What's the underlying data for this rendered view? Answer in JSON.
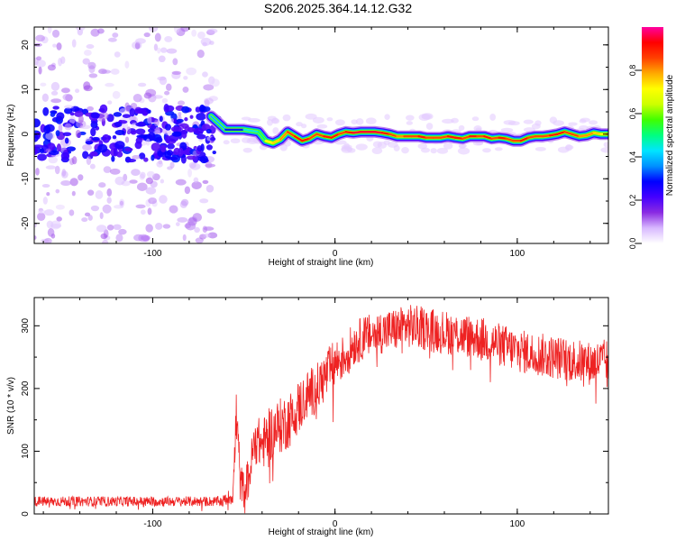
{
  "title": "S206.2025.364.14.12.G32",
  "colors": {
    "snr_line": "#ee2222",
    "background": "#ffffff",
    "axes": "#000000"
  },
  "chart_data": [
    {
      "type": "heatmap",
      "xlabel": "Height of straight line (km)",
      "ylabel": "Frequency (Hz)",
      "xlim": [
        -165,
        150
      ],
      "ylim": [
        -24.5,
        24
      ],
      "x_ticks": [
        -100,
        0,
        100
      ],
      "y_ticks": [
        -20,
        -10,
        0,
        10,
        20
      ],
      "colorbar": {
        "label": "Normalized spectral amplitude",
        "range": [
          0,
          1
        ],
        "ticks": [
          "0.0",
          "0.2",
          "0.4",
          "0.6",
          "0.8"
        ],
        "colormap": [
          "#ffffff",
          "#d8b8ff",
          "#8a2be2",
          "#4400ff",
          "#0000ff",
          "#0090ff",
          "#00e5ff",
          "#00ff80",
          "#40ff00",
          "#ccff00",
          "#ffff00",
          "#ffaa00",
          "#ff4000",
          "#ff0000",
          "#ff00a0"
        ]
      },
      "ridge": {
        "description_free": true,
        "x": [
          -68,
          -60,
          -50,
          -42,
          -38,
          -34,
          -30,
          -26,
          -22,
          -18,
          -14,
          -10,
          -6,
          -2,
          2,
          6,
          10,
          14,
          18,
          22,
          26,
          30,
          34,
          38,
          42,
          46,
          50,
          54,
          58,
          62,
          66,
          70,
          74,
          78,
          82,
          86,
          90,
          94,
          98,
          102,
          106,
          110,
          114,
          118,
          122,
          126,
          130,
          134,
          138,
          142,
          146,
          150
        ],
        "frequency": [
          4,
          1.0,
          1.0,
          0.5,
          -1.5,
          -2.0,
          -1.2,
          0.5,
          -0.5,
          -1.5,
          -1.0,
          0.0,
          -0.5,
          -0.8,
          0.0,
          0.5,
          0.3,
          0.5,
          0.5,
          0.5,
          0.3,
          0.0,
          -0.5,
          -0.5,
          -0.5,
          -0.5,
          -0.8,
          -0.8,
          -0.8,
          -0.5,
          -0.8,
          -1.0,
          -0.5,
          -0.5,
          -0.5,
          -1.0,
          -0.8,
          -1.0,
          -1.5,
          -1.5,
          -0.8,
          -0.5,
          -0.5,
          -0.3,
          0.0,
          0.5,
          0.0,
          -0.5,
          -0.3,
          0.3,
          0.0,
          0.0
        ],
        "amplitude": [
          0.4,
          0.3,
          0.45,
          0.5,
          0.7,
          0.75,
          0.8,
          0.85,
          0.9,
          0.9,
          0.85,
          0.85,
          0.9,
          0.9,
          0.85,
          0.9,
          0.95,
          0.95,
          0.95,
          0.95,
          0.9,
          0.85,
          0.8,
          0.85,
          0.85,
          0.9,
          0.85,
          0.85,
          0.85,
          0.9,
          0.9,
          0.85,
          0.9,
          0.85,
          0.9,
          0.85,
          0.9,
          0.85,
          0.85,
          0.9,
          0.85,
          0.85,
          0.85,
          0.9,
          0.9,
          0.85,
          0.85,
          0.8,
          0.8,
          0.75,
          0.7,
          0.7
        ]
      },
      "noise_region": {
        "x_range": [
          -165,
          -65
        ],
        "frequency_range": [
          -24.5,
          24
        ],
        "core_frequency_range": [
          -6,
          6
        ],
        "amplitude_range": [
          0.05,
          0.45
        ]
      }
    },
    {
      "type": "line",
      "xlabel": "Height of straight line (km)",
      "ylabel": "SNR (10 * v/v)",
      "xlim": [
        -165,
        150
      ],
      "ylim": [
        0,
        345
      ],
      "x_ticks": [
        -100,
        0,
        100
      ],
      "y_ticks": [
        0,
        100,
        200,
        300
      ],
      "series": [
        {
          "name": "SNR",
          "x": [
            -165,
            -150,
            -130,
            -110,
            -90,
            -75,
            -62,
            -56,
            -54,
            -52,
            -50,
            -47,
            -44,
            -40,
            -35,
            -30,
            -25,
            -20,
            -15,
            -10,
            -5,
            0,
            5,
            10,
            15,
            20,
            25,
            30,
            35,
            40,
            50,
            60,
            70,
            80,
            90,
            100,
            110,
            120,
            130,
            140,
            150
          ],
          "values": [
            20,
            20,
            20,
            20,
            20,
            20,
            20,
            30,
            160,
            50,
            40,
            60,
            120,
            110,
            130,
            140,
            150,
            170,
            190,
            200,
            220,
            240,
            250,
            270,
            280,
            285,
            290,
            292,
            295,
            300,
            295,
            290,
            285,
            280,
            270,
            260,
            255,
            250,
            245,
            240,
            245
          ],
          "noise_amplitude": [
            8,
            8,
            8,
            8,
            8,
            8,
            8,
            15,
            60,
            30,
            30,
            35,
            40,
            40,
            45,
            45,
            45,
            45,
            40,
            40,
            40,
            40,
            35,
            35,
            35,
            35,
            35,
            35,
            35,
            35,
            35,
            35,
            35,
            35,
            35,
            35,
            35,
            35,
            35,
            35,
            35
          ]
        }
      ]
    }
  ]
}
